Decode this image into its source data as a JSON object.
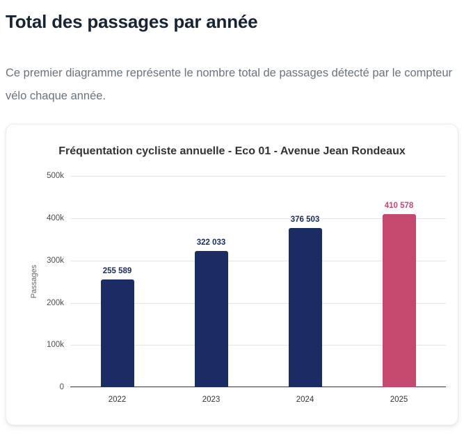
{
  "page": {
    "title": "Total des passages par année",
    "description": "Ce premier diagramme représente le nombre total de passages détecté par le compteur vélo chaque année."
  },
  "chart_data": {
    "type": "bar",
    "title": "Fréquentation cycliste annuelle - Eco 01 - Avenue Jean Rondeaux",
    "categories": [
      "2022",
      "2023",
      "2024",
      "2025"
    ],
    "values": [
      255589,
      322033,
      376503,
      410578
    ],
    "value_labels": [
      "255 589",
      "322 033",
      "376 503",
      "410 578"
    ],
    "bar_colors": [
      "#1a2c63",
      "#1a2c63",
      "#1a2c63",
      "#c5486f"
    ],
    "label_colors": [
      "#1a2c63",
      "#1a2c63",
      "#1a2c63",
      "#c5486f"
    ],
    "xlabel": "",
    "ylabel": "Passages",
    "ylim": [
      0,
      500000
    ],
    "yticks": [
      0,
      100000,
      200000,
      300000,
      400000,
      500000
    ],
    "ytick_labels": [
      "0",
      "100k",
      "200k",
      "300k",
      "400k",
      "500k"
    ],
    "grid": true,
    "legend": false
  },
  "colors": {
    "navy": "#1a2c63",
    "pink": "#c5486f",
    "heading": "#162433",
    "body_text": "#6a737d",
    "chart_title": "#333333",
    "axis_line": "#333333",
    "gridline": "#e6e6e6",
    "card_border": "#ececec",
    "card_bg": "#ffffff",
    "page_bg": "#ffffff"
  }
}
